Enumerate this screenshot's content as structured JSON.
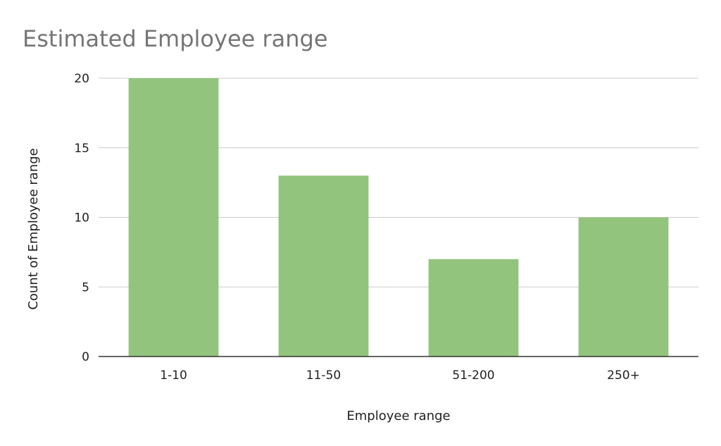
{
  "chart_data": {
    "type": "bar",
    "title": "Estimated Employee range",
    "xlabel": "Employee range",
    "ylabel": "Count of Employee range",
    "categories": [
      "1-10",
      "11-50",
      "51-200",
      "250+"
    ],
    "values": [
      20,
      13,
      7,
      10
    ],
    "ylim": [
      0,
      20
    ],
    "yticks": [
      0,
      5,
      10,
      15,
      20
    ],
    "grid": true,
    "legend": "none",
    "bar_color": "#93c47d",
    "gridline_color": "#cccccc",
    "axis_color": "#333333"
  }
}
